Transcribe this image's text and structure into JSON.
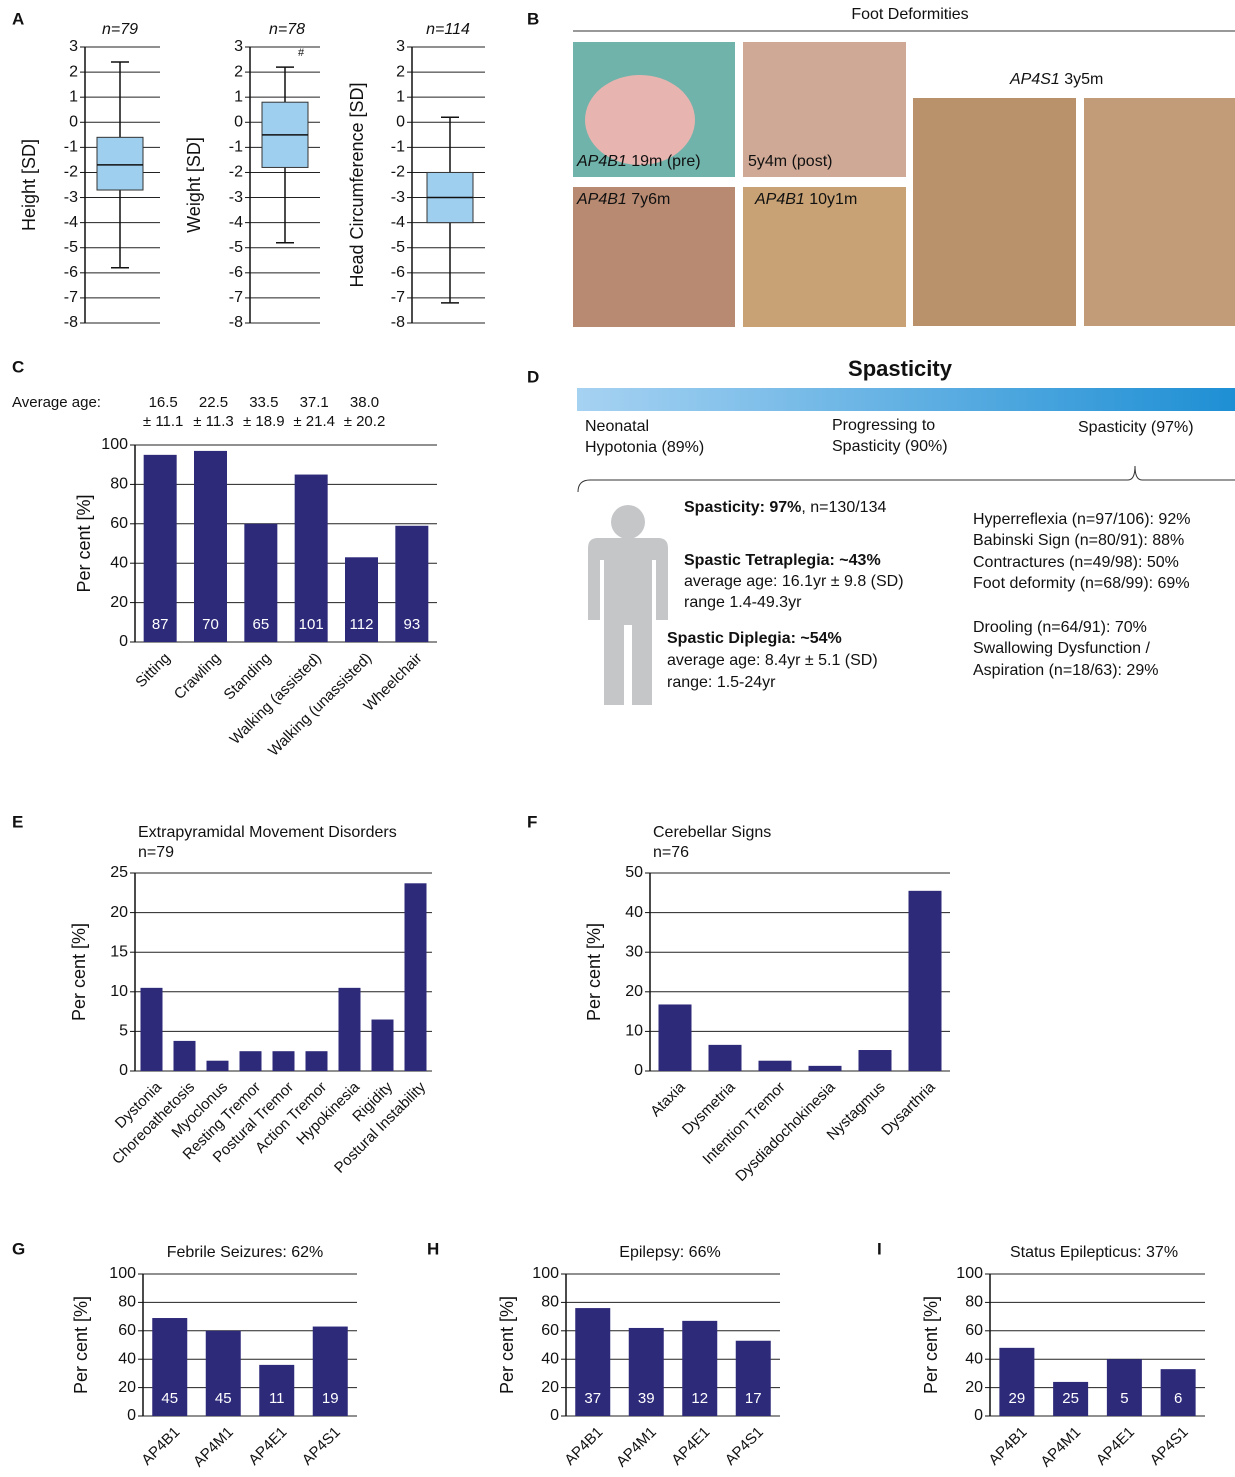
{
  "panel_labels": [
    "A",
    "B",
    "C",
    "D",
    "E",
    "F",
    "G",
    "H",
    "I"
  ],
  "chart_data": [
    {
      "type": "box",
      "title": "n=79",
      "y_label": "Height [SD]",
      "ylim": [
        -8,
        3
      ],
      "yticks": [
        -8,
        -7,
        -6,
        -5,
        -4,
        -3,
        -2,
        -1,
        0,
        1,
        2,
        3
      ],
      "grid": true,
      "color": "#9fcfee",
      "box": {
        "min": -5.8,
        "q1": -2.7,
        "median": -1.7,
        "q3": -0.6,
        "max": 2.4
      }
    },
    {
      "type": "box",
      "title": "n=78",
      "y_label": "Weight [SD]",
      "annotation": "#",
      "ylim": [
        -8,
        3
      ],
      "yticks": [
        -8,
        -7,
        -6,
        -5,
        -4,
        -3,
        -2,
        -1,
        0,
        1,
        2,
        3
      ],
      "grid": true,
      "color": "#9fcfee",
      "box": {
        "min": -4.8,
        "q1": -1.8,
        "median": -0.5,
        "q3": 0.8,
        "max": 2.2
      }
    },
    {
      "type": "box",
      "title": "n=114",
      "y_label": "Head Circumference [SD]",
      "ylim": [
        -8,
        3
      ],
      "yticks": [
        -8,
        -7,
        -6,
        -5,
        -4,
        -3,
        -2,
        -1,
        0,
        1,
        2,
        3
      ],
      "grid": true,
      "color": "#9fcfee",
      "box": {
        "min": -7.2,
        "q1": -4.0,
        "median": -3.0,
        "q3": -2.0,
        "max": 0.2
      }
    },
    {
      "type": "bar",
      "y_label": "Per cent [%]",
      "categories": [
        "Sitting",
        "Crawling",
        "Standing",
        "Walking (assisted)",
        "Walking (unassisted)",
        "Wheelchair"
      ],
      "values": [
        95,
        97,
        60,
        85,
        43,
        59
      ],
      "n_labels": [
        87,
        70,
        65,
        101,
        112,
        93
      ],
      "color": "#2e2a7a",
      "average_age_label": "Average age:",
      "average_age": [
        {
          "mean": "16.5",
          "sd": "± 11.1"
        },
        {
          "mean": "22.5",
          "sd": "± 11.3"
        },
        {
          "mean": "33.5",
          "sd": "± 18.9"
        },
        {
          "mean": "37.1",
          "sd": "± 21.4"
        },
        {
          "mean": "38.0",
          "sd": "± 20.2"
        }
      ],
      "ylim": [
        0,
        100
      ],
      "yticks": [
        0,
        20,
        40,
        60,
        80,
        100
      ],
      "grid": true
    },
    {
      "type": "bar",
      "title": "Extrapyramidal Movement Disorders",
      "subtitle": "n=79",
      "y_label": "Per cent [%]",
      "categories": [
        "Dystonia",
        "Choreoathetosis",
        "Myoclonus",
        "Resting Tremor",
        "Postural Tremor",
        "Action Tremor",
        "Hypokinesia",
        "Rigidity",
        "Postural Instability"
      ],
      "values": [
        10.5,
        3.8,
        1.3,
        2.5,
        2.5,
        2.5,
        10.5,
        6.5,
        23.7
      ],
      "color": "#2e2a7a",
      "ylim": [
        0,
        25
      ],
      "yticks": [
        0,
        5,
        10,
        15,
        20,
        25
      ],
      "grid": true
    },
    {
      "type": "bar",
      "title": "Cerebellar Signs",
      "subtitle": "n=76",
      "y_label": "Per cent [%]",
      "categories": [
        "Ataxia",
        "Dysmetria",
        "Intention Tremor",
        "Dysdiadochokinesia",
        "Nystagmus",
        "Dysarthria"
      ],
      "values": [
        16.8,
        6.6,
        2.6,
        1.3,
        5.3,
        45.5
      ],
      "color": "#2e2a7a",
      "ylim": [
        0,
        50
      ],
      "yticks": [
        0,
        10,
        20,
        30,
        40,
        50
      ],
      "grid": true
    },
    {
      "type": "bar",
      "title": "Febrile Seizures: 62%",
      "y_label": "Per cent [%]",
      "categories": [
        "AP4B1",
        "AP4M1",
        "AP4E1",
        "AP4S1"
      ],
      "values": [
        69,
        60,
        36,
        63
      ],
      "n_labels": [
        45,
        45,
        11,
        19
      ],
      "color": "#2e2a7a",
      "ylim": [
        0,
        100
      ],
      "yticks": [
        0,
        20,
        40,
        60,
        80,
        100
      ],
      "grid": true
    },
    {
      "type": "bar",
      "title": "Epilepsy: 66%",
      "y_label": "Per cent [%]",
      "categories": [
        "AP4B1",
        "AP4M1",
        "AP4E1",
        "AP4S1"
      ],
      "values": [
        76,
        62,
        67,
        53
      ],
      "n_labels": [
        37,
        39,
        12,
        17
      ],
      "color": "#2e2a7a",
      "ylim": [
        0,
        100
      ],
      "yticks": [
        0,
        20,
        40,
        60,
        80,
        100
      ],
      "grid": true
    },
    {
      "type": "bar",
      "title": "Status Epilepticus: 37%",
      "y_label": "Per cent [%]",
      "categories": [
        "AP4B1",
        "AP4M1",
        "AP4E1",
        "AP4S1"
      ],
      "values": [
        48,
        24,
        40,
        33
      ],
      "n_labels": [
        29,
        25,
        5,
        6
      ],
      "color": "#2e2a7a",
      "ylim": [
        0,
        100
      ],
      "yticks": [
        0,
        20,
        40,
        60,
        80,
        100
      ],
      "grid": true
    }
  ],
  "panel_b": {
    "title": "Foot Deformities",
    "captions": [
      {
        "gene": "AP4B1",
        "text": " 19m (pre)"
      },
      {
        "text": "5y4m (post)"
      },
      {
        "gene": "AP4B1",
        "text": " 7y6m"
      },
      {
        "gene": "AP4B1",
        "text": " 10y1m"
      },
      {
        "gene": "AP4S1",
        "text": " 3y5m"
      }
    ]
  },
  "panel_d": {
    "title": "Spasticity",
    "stages": [
      [
        "Neonatal",
        "Hypotonia (89%)"
      ],
      [
        "Progressing to",
        "Spasticity (90%)"
      ],
      [
        "Spasticity (97%)"
      ]
    ],
    "summary": {
      "bold": "Spasticity: 97%",
      "rest": ", n=130/134"
    },
    "tetraplegia": {
      "bold": "Spastic Tetraplegia: ~43%",
      "lines": [
        "average age: 16.1yr ± 9.8 (SD)",
        "range 1.4-49.3yr"
      ]
    },
    "diplegia": {
      "bold": "Spastic Diplegia: ~54%",
      "lines": [
        "average age: 8.4yr ± 5.1 (SD)",
        "range: 1.5-24yr"
      ]
    },
    "signs": [
      "Hyperreflexia (n=97/106): 92%",
      "Babinski Sign (n=80/91): 88%",
      "Contractures (n=49/98): 50%",
      "Foot deformity (n=68/99): 69%"
    ],
    "bulbar": [
      "Drooling (n=64/91): 70%",
      "Swallowing Dysfunction /",
      "Aspiration (n=18/63): 29%"
    ]
  }
}
